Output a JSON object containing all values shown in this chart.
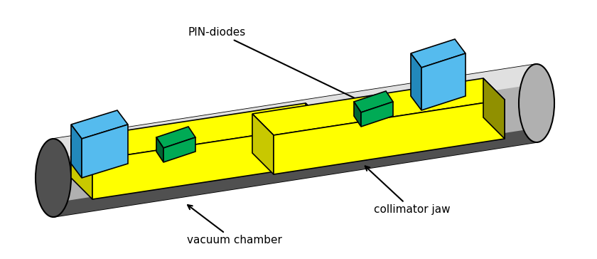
{
  "background_color": "none",
  "pipe_color_main": "#b0b0b0",
  "pipe_color_dark": "#505050",
  "pipe_color_highlight": "#e0e0e0",
  "jaw_top_face": "#ffff00",
  "jaw_front_face": "#c8c800",
  "jaw_dark_face": "#909000",
  "blue_face_light": "#55bbee",
  "blue_face_dark": "#2288bb",
  "green_face_light": "#00aa55",
  "green_face_dark": "#006633",
  "label_pin_diodes": "PIN-diodes",
  "label_vacuum_chamber": "vacuum chamber",
  "label_collimator_jaw": "collimator jaw",
  "figsize": [
    8.4,
    3.64
  ],
  "dpi": 100
}
